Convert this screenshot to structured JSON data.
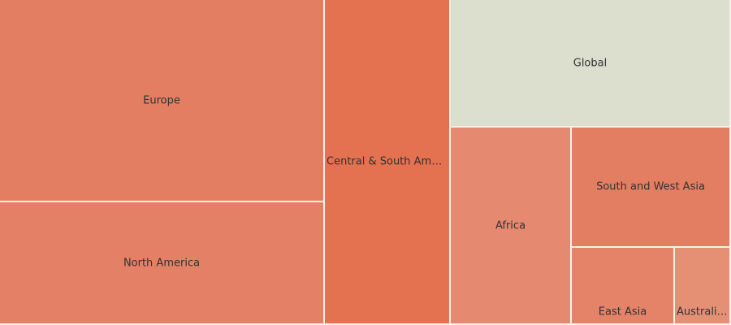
{
  "chart_data": {
    "type": "treemap",
    "items": [
      {
        "label": "Europe",
        "value": 15.6,
        "color": "#e47e63"
      },
      {
        "label": "North America",
        "value": 9.9,
        "color": "#e48066"
      },
      {
        "label": "Central & South Americ...",
        "value": 15.5,
        "color": "#e4714f"
      },
      {
        "label": "Global",
        "value": 9.0,
        "color": "#dcdece"
      },
      {
        "label": "Africa",
        "value": 5.6,
        "color": "#e58a71"
      },
      {
        "label": "South and West Asia",
        "value": 4.9,
        "color": "#e47e63"
      },
      {
        "label": "East Asia",
        "value": 2.7,
        "color": "#e48367"
      },
      {
        "label": "Australia ...",
        "value": 1.5,
        "color": "#e58f75"
      }
    ]
  }
}
